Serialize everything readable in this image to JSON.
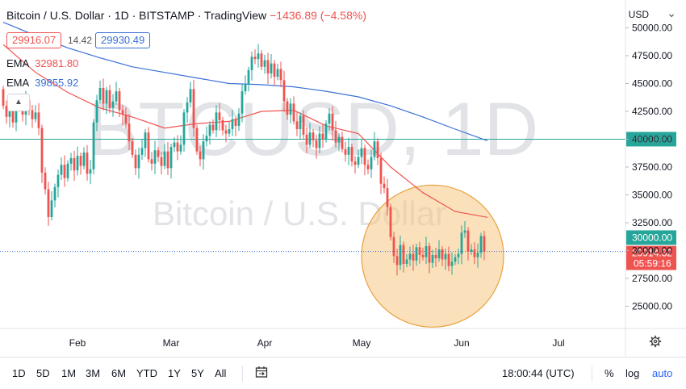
{
  "header": {
    "title": "Bitcoin / U.S. Dollar · 1D · BITSTAMP · TradingView",
    "change": "−1436.89 (−4.58%)",
    "bid": "29916.07",
    "spread": "14.42",
    "ask": "29930.49",
    "currency": "USD"
  },
  "indicators": [
    {
      "label": "EMA",
      "value": "32981.80",
      "color": "#ef5350"
    },
    {
      "label": "EMA",
      "value": "39855.92",
      "color": "#3a70d6"
    }
  ],
  "watermark": {
    "symbol": "BTCUSD, 1D",
    "name": "Bitcoin / U.S. Dollar"
  },
  "toolbar": {
    "timeframes": [
      "1D",
      "5D",
      "1M",
      "3M",
      "6M",
      "YTD",
      "1Y",
      "5Y",
      "All"
    ],
    "time": "18:00:44 (UTC)",
    "options": [
      "%",
      "log",
      "auto"
    ]
  },
  "chart_data": {
    "type": "candlestick",
    "ylim": [
      23000,
      52500
    ],
    "y_ticks": [
      25000,
      27500,
      30000,
      32500,
      35000,
      37500,
      40000,
      42500,
      45000,
      47500,
      50000
    ],
    "y_tick_labels": [
      "25000.00",
      "27500.00",
      "30000.00",
      "32500.00",
      "35000.00",
      "37500.00",
      "40000.00",
      "42500.00",
      "45000.00",
      "47500.00",
      "50000.00"
    ],
    "x_labels": [
      "Feb",
      "Mar",
      "Apr",
      "May",
      "Jun",
      "Jul"
    ],
    "horizontal_lines": [
      {
        "price": 40000,
        "label": "40000.00",
        "color": "#26a69a",
        "style": "solid"
      },
      {
        "price": 29914.32,
        "label": "29914.32",
        "color": "#3a70d6",
        "style": "dotted"
      }
    ],
    "price_labels": [
      {
        "price": 30000,
        "text": "30000.00",
        "color": "#26a69a"
      },
      {
        "price": 29914.32,
        "text": "29914.32",
        "sub": "05:59:16",
        "color": "#ef5350"
      }
    ],
    "closes": [
      43000,
      42000,
      42500,
      41500,
      42800,
      43300,
      42200,
      43500,
      42600,
      41800,
      42400,
      41000,
      37000,
      35500,
      33000,
      34500,
      35700,
      36800,
      37700,
      36500,
      37800,
      38300,
      37200,
      38500,
      37600,
      38800,
      36900,
      37300,
      41500,
      43500,
      44600,
      43200,
      44400,
      42800,
      43400,
      44300,
      42600,
      42200,
      41400,
      39800,
      38600,
      37400,
      38600,
      39200,
      40600,
      38200,
      37800,
      39000,
      38400,
      37600,
      38900,
      37400,
      39300,
      39700,
      38900,
      39500,
      42400,
      43300,
      44500,
      41000,
      38900,
      38200,
      39800,
      40300,
      41300,
      40800,
      42400,
      41700,
      40800,
      40500,
      40900,
      41800,
      41200,
      42300,
      44300,
      44900,
      46200,
      47400,
      47200,
      47700,
      46500,
      47100,
      45900,
      46800,
      45600,
      46300,
      45300,
      43400,
      42200,
      43200,
      41600,
      40900,
      42100,
      40400,
      39500,
      40600,
      39900,
      39200,
      40500,
      40000,
      41400,
      42300,
      40800,
      39700,
      40200,
      39100,
      38600,
      39300,
      38000,
      37700,
      38400,
      39200,
      37700,
      37300,
      38400,
      39800,
      38300,
      36000,
      35600,
      33900,
      31200,
      29500,
      28700,
      30500,
      28800,
      29200,
      29700,
      29100,
      30300,
      29600,
      29400,
      30400,
      28900,
      29600,
      29300,
      30100,
      29200,
      29700,
      28600,
      29000,
      29400,
      29700,
      31600,
      31800,
      29900,
      30100,
      29400,
      29800,
      31300,
      29914
    ],
    "series": [
      {
        "name": "EMA",
        "color": "#ef5350",
        "points": [
          [
            0,
            48500
          ],
          [
            10,
            46000
          ],
          [
            20,
            44200
          ],
          [
            30,
            42800
          ],
          [
            40,
            42000
          ],
          [
            50,
            41000
          ],
          [
            60,
            41400
          ],
          [
            70,
            41600
          ],
          [
            80,
            42500
          ],
          [
            90,
            42600
          ],
          [
            100,
            41200
          ],
          [
            110,
            40500
          ],
          [
            120,
            37500
          ],
          [
            130,
            35200
          ],
          [
            140,
            33500
          ],
          [
            150,
            32982
          ]
        ]
      },
      {
        "name": "EMA",
        "color": "#3a70d6",
        "points": [
          [
            0,
            50500
          ],
          [
            10,
            49300
          ],
          [
            20,
            48200
          ],
          [
            30,
            47300
          ],
          [
            40,
            46500
          ],
          [
            50,
            46000
          ],
          [
            60,
            45500
          ],
          [
            70,
            45000
          ],
          [
            80,
            44900
          ],
          [
            90,
            44700
          ],
          [
            100,
            44300
          ],
          [
            110,
            43800
          ],
          [
            120,
            43000
          ],
          [
            130,
            42000
          ],
          [
            140,
            40900
          ],
          [
            150,
            39856
          ]
        ]
      }
    ],
    "highlight": {
      "shape": "circle",
      "fill": "#f5c983",
      "stroke": "#e8a13c"
    }
  }
}
